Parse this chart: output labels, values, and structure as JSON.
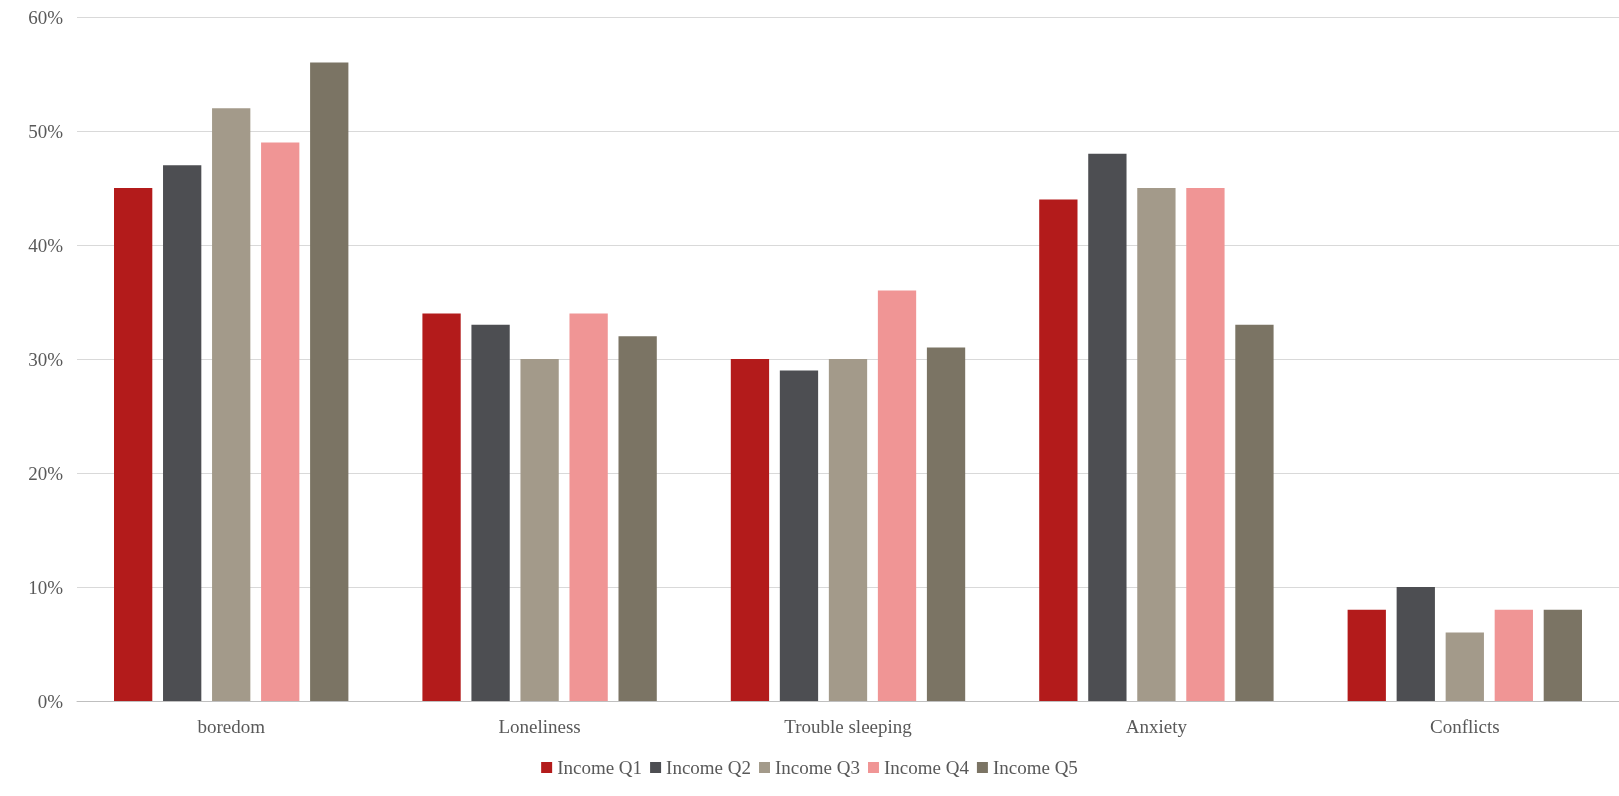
{
  "chart_data": {
    "type": "bar",
    "categories": [
      "boredom",
      "Loneliness",
      "Trouble sleeping",
      "Anxiety",
      "Conflicts"
    ],
    "series": [
      {
        "name": "Income Q1",
        "color": "#b31b1b",
        "values": [
          45,
          34,
          30,
          44,
          8
        ]
      },
      {
        "name": "Income Q2",
        "color": "#4d4e52",
        "values": [
          47,
          33,
          29,
          48,
          10
        ]
      },
      {
        "name": "Income Q3",
        "color": "#a39a8a",
        "values": [
          52,
          30,
          30,
          45,
          6
        ]
      },
      {
        "name": "Income Q4",
        "color": "#f09595",
        "values": [
          49,
          34,
          36,
          45,
          8
        ]
      },
      {
        "name": "Income Q5",
        "color": "#7b7464",
        "values": [
          56,
          32,
          31,
          33,
          8
        ]
      }
    ],
    "ylim": [
      0,
      60
    ],
    "yticks": [
      {
        "value": 0,
        "label": "0%"
      },
      {
        "value": 10,
        "label": "10%"
      },
      {
        "value": 20,
        "label": "20%"
      },
      {
        "value": 30,
        "label": "30%"
      },
      {
        "value": 40,
        "label": "40%"
      },
      {
        "value": 50,
        "label": "50%"
      },
      {
        "value": 60,
        "label": "60%"
      }
    ],
    "grid": true,
    "legend": "bottom"
  }
}
